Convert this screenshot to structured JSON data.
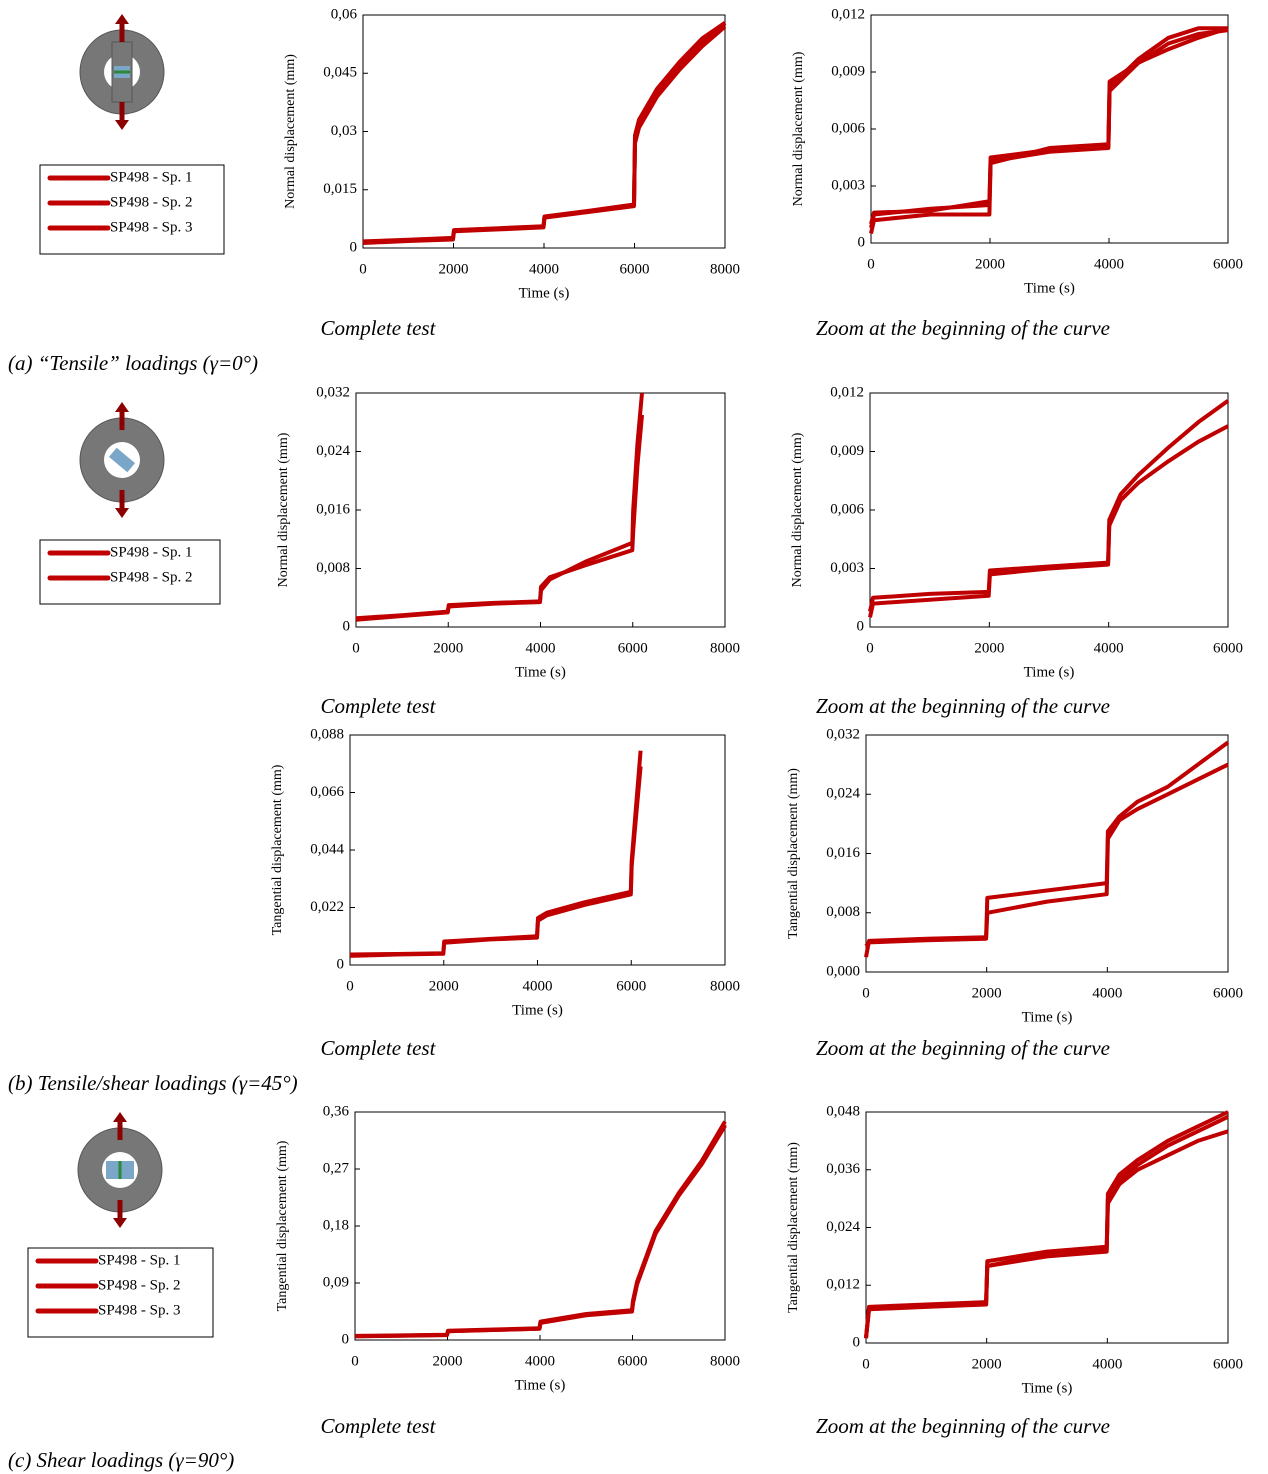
{
  "figure_labels": [
    "(a) “Tensile” loadings (γ=0°)",
    "(b) Tensile/shear loadings (γ=45°)",
    "(c) Shear loadings (γ=90°)"
  ],
  "chart_data": [
    {
      "type": "line",
      "caption": "Complete test",
      "xlabel": "Time (s)",
      "ylabel": "Normal displacement  (mm)",
      "x": [
        0,
        1000,
        1990,
        2010,
        3000,
        3990,
        4010,
        5000,
        5990,
        6010,
        6100,
        6500,
        7000,
        7500,
        8000
      ],
      "xlim": [
        0,
        8000
      ],
      "xticks": [
        0,
        2000,
        4000,
        6000,
        8000
      ],
      "ylim": [
        0,
        0.06
      ],
      "yticks": [
        0,
        {
          "value": 0.015,
          "label": "0,015"
        },
        {
          "value": 0.03,
          "label": "0,03"
        },
        {
          "value": 0.045,
          "label": "0,045"
        },
        {
          "value": 0.06,
          "label": "0,06"
        }
      ],
      "series": [
        {
          "name": "SP498 - Sp. 1",
          "color": "#c00000",
          "values": [
            0.0015,
            0.002,
            0.0025,
            0.0045,
            0.005,
            0.0055,
            0.008,
            0.0095,
            0.011,
            0.028,
            0.032,
            0.04,
            0.047,
            0.053,
            0.058
          ]
        },
        {
          "name": "SP498 - Sp. 2",
          "color": "#c00000",
          "values": [
            0.0013,
            0.0018,
            0.0022,
            0.0043,
            0.0048,
            0.0053,
            0.0078,
            0.0093,
            0.0108,
            0.027,
            0.031,
            0.039,
            0.046,
            0.052,
            0.057
          ]
        },
        {
          "name": "SP498 - Sp. 3",
          "color": "#c00000",
          "values": [
            0.0017,
            0.0021,
            0.0026,
            0.0046,
            0.0051,
            0.0056,
            0.0081,
            0.0096,
            0.0112,
            0.029,
            0.033,
            0.041,
            0.048,
            0.054,
            0.058
          ]
        }
      ]
    },
    {
      "type": "line",
      "caption": "Zoom at the beginning of the curve",
      "xlabel": "Time (s)",
      "ylabel": "Normal displacement  (mm)",
      "x": [
        0,
        50,
        1000,
        1990,
        2010,
        3000,
        3990,
        4010,
        4500,
        5000,
        5500,
        6000
      ],
      "xlim": [
        0,
        6000
      ],
      "xticks": [
        0,
        2000,
        4000,
        6000
      ],
      "ylim": [
        0,
        0.012
      ],
      "yticks": [
        0,
        {
          "value": 0.003,
          "label": "0,003"
        },
        {
          "value": 0.006,
          "label": "0,006"
        },
        {
          "value": 0.009,
          "label": "0,009"
        },
        {
          "value": 0.012,
          "label": "0,012"
        }
      ],
      "series": [
        {
          "color": "#c00000",
          "values": [
            0.0008,
            0.0015,
            0.0018,
            0.002,
            0.0043,
            0.0048,
            0.005,
            0.008,
            0.0095,
            0.0105,
            0.011,
            0.0112
          ]
        },
        {
          "color": "#c00000",
          "values": [
            0.0005,
            0.0012,
            0.0015,
            0.0015,
            0.0042,
            0.005,
            0.0052,
            0.0085,
            0.0095,
            0.0102,
            0.0108,
            0.0113
          ]
        },
        {
          "color": "#c00000",
          "values": [
            0.001,
            0.0016,
            0.0017,
            0.0022,
            0.0045,
            0.0049,
            0.0051,
            0.0082,
            0.0097,
            0.0108,
            0.0113,
            0.0113
          ]
        }
      ]
    },
    {
      "type": "line",
      "caption": "Complete test",
      "xlabel": "Time (s)",
      "ylabel": "Normal displacement  (mm)",
      "x": [
        0,
        1000,
        1990,
        2010,
        3000,
        3990,
        4010,
        4200,
        5000,
        5990,
        6010,
        6100,
        6200,
        7000,
        8000
      ],
      "xlim": [
        0,
        8000
      ],
      "xticks": [
        0,
        2000,
        4000,
        6000,
        8000
      ],
      "ylim": [
        0,
        0.032
      ],
      "yticks": [
        0,
        {
          "value": 0.008,
          "label": "0,008"
        },
        {
          "value": 0.016,
          "label": "0,016"
        },
        {
          "value": 0.024,
          "label": "0,024"
        },
        {
          "value": 0.032,
          "label": "0,032"
        }
      ],
      "series": [
        {
          "name": "SP498 - Sp. 1",
          "color": "#c00000",
          "values": [
            0.001,
            0.0015,
            0.002,
            0.003,
            0.0033,
            0.0035,
            0.005,
            0.0065,
            0.009,
            0.0115,
            0.016,
            0.025,
            0.032,
            null,
            null
          ]
        },
        {
          "name": "SP498 - Sp. 2",
          "color": "#c00000",
          "values": [
            0.0012,
            0.0016,
            0.0021,
            0.0028,
            0.0032,
            0.0034,
            0.0055,
            0.0068,
            0.0085,
            0.0105,
            0.013,
            0.022,
            0.029,
            null,
            null
          ]
        }
      ]
    },
    {
      "type": "line",
      "caption": "Zoom at the beginning of the curve",
      "xlabel": "Time (s)",
      "ylabel": "Normal displacement  (mm)",
      "x": [
        0,
        50,
        1000,
        1990,
        2010,
        3000,
        3990,
        4010,
        4200,
        4500,
        5000,
        5500,
        6000
      ],
      "xlim": [
        0,
        6000
      ],
      "xticks": [
        0,
        2000,
        4000,
        6000
      ],
      "ylim": [
        0,
        0.012
      ],
      "yticks": [
        0,
        {
          "value": 0.003,
          "label": "0,003"
        },
        {
          "value": 0.006,
          "label": "0,006"
        },
        {
          "value": 0.009,
          "label": "0,009"
        },
        {
          "value": 0.012,
          "label": "0,012"
        }
      ],
      "series": [
        {
          "color": "#c00000",
          "values": [
            0.0005,
            0.0012,
            0.0014,
            0.0016,
            0.0027,
            0.003,
            0.0032,
            0.0055,
            0.0068,
            0.0078,
            0.0092,
            0.0105,
            0.0116
          ]
        },
        {
          "color": "#c00000",
          "values": [
            0.0008,
            0.0015,
            0.0017,
            0.0018,
            0.0029,
            0.0031,
            0.0033,
            0.0052,
            0.0065,
            0.0074,
            0.0085,
            0.0095,
            0.0103
          ]
        }
      ]
    },
    {
      "type": "line",
      "caption": "Complete test",
      "xlabel": "Time (s)",
      "ylabel": "Tangential displacement (mm)",
      "x": [
        0,
        1000,
        1990,
        2010,
        3000,
        3990,
        4010,
        4200,
        5000,
        5990,
        6010,
        6100,
        6200,
        7000,
        8000
      ],
      "xlim": [
        0,
        8000
      ],
      "xticks": [
        0,
        2000,
        4000,
        6000,
        8000
      ],
      "ylim": [
        0,
        0.088
      ],
      "yticks": [
        0,
        {
          "value": 0.022,
          "label": "0,022"
        },
        {
          "value": 0.044,
          "label": "0,044"
        },
        {
          "value": 0.066,
          "label": "0,066"
        },
        {
          "value": 0.088,
          "label": "0,088"
        }
      ],
      "series": [
        {
          "color": "#c00000",
          "values": [
            0.004,
            0.0042,
            0.0045,
            0.009,
            0.01,
            0.011,
            0.018,
            0.02,
            0.024,
            0.028,
            0.04,
            0.06,
            0.082,
            null,
            null
          ]
        },
        {
          "color": "#c00000",
          "values": [
            0.0035,
            0.004,
            0.0043,
            0.0085,
            0.0098,
            0.0105,
            0.017,
            0.019,
            0.023,
            0.027,
            0.038,
            0.056,
            0.076,
            null,
            null
          ]
        }
      ]
    },
    {
      "type": "line",
      "caption": "Zoom at the beginning of the curve",
      "xlabel": "Time (s)",
      "ylabel": "Tangential displacement (mm)",
      "x": [
        0,
        50,
        1000,
        1990,
        2010,
        3000,
        3990,
        4010,
        4200,
        4500,
        5000,
        5500,
        6000
      ],
      "xlim": [
        0,
        6000
      ],
      "xticks": [
        0,
        2000,
        4000,
        6000
      ],
      "ylim": [
        0,
        0.032
      ],
      "yticks": [
        {
          "value": 0,
          "label": "0,000"
        },
        {
          "value": 0.008,
          "label": "0,008"
        },
        {
          "value": 0.016,
          "label": "0,016"
        },
        {
          "value": 0.024,
          "label": "0,024"
        },
        {
          "value": 0.032,
          "label": "0,032"
        }
      ],
      "series": [
        {
          "color": "#c00000",
          "values": [
            0.002,
            0.0042,
            0.0045,
            0.0047,
            0.01,
            0.011,
            0.012,
            0.019,
            0.021,
            0.023,
            0.025,
            0.028,
            0.031
          ]
        },
        {
          "color": "#c00000",
          "values": [
            0.0035,
            0.004,
            0.0043,
            0.0045,
            0.008,
            0.0095,
            0.0105,
            0.018,
            0.0205,
            0.022,
            0.024,
            0.026,
            0.028
          ]
        }
      ]
    },
    {
      "type": "line",
      "caption": "Complete test",
      "xlabel": "Time (s)",
      "ylabel": "Tangential displacement (mm)",
      "x": [
        0,
        1000,
        1990,
        2010,
        3000,
        3990,
        4010,
        5000,
        5990,
        6010,
        6100,
        6500,
        7000,
        7500,
        8000
      ],
      "xlim": [
        0,
        8000
      ],
      "xticks": [
        0,
        2000,
        4000,
        6000,
        8000
      ],
      "ylim": [
        0,
        0.36
      ],
      "yticks": [
        0,
        {
          "value": 0.09,
          "label": "0,09"
        },
        {
          "value": 0.18,
          "label": "0,18"
        },
        {
          "value": 0.27,
          "label": "0,27"
        },
        {
          "value": 0.36,
          "label": "0,36"
        }
      ],
      "series": [
        {
          "name": "SP498 - Sp. 1",
          "color": "#c00000",
          "values": [
            0.006,
            0.007,
            0.008,
            0.014,
            0.016,
            0.018,
            0.028,
            0.04,
            0.046,
            0.06,
            0.09,
            0.17,
            0.23,
            0.28,
            0.34
          ]
        },
        {
          "name": "SP498 - Sp. 2",
          "color": "#c00000",
          "values": [
            0.0065,
            0.0072,
            0.0082,
            0.0145,
            0.0165,
            0.0185,
            0.029,
            0.041,
            0.047,
            0.062,
            0.092,
            0.172,
            0.232,
            0.283,
            0.345
          ]
        },
        {
          "name": "SP498 - Sp. 3",
          "color": "#c00000",
          "values": [
            0.0058,
            0.0068,
            0.0078,
            0.0138,
            0.0158,
            0.0178,
            0.027,
            0.039,
            0.045,
            0.058,
            0.088,
            0.168,
            0.228,
            0.278,
            0.338
          ]
        }
      ]
    },
    {
      "type": "line",
      "caption": "Zoom at the beginning of the curve",
      "xlabel": "Time (s)",
      "ylabel": "Tangential displacement (mm)",
      "x": [
        0,
        50,
        1000,
        1990,
        2010,
        3000,
        3990,
        4010,
        4200,
        4500,
        5000,
        5500,
        6000
      ],
      "xlim": [
        0,
        6000
      ],
      "xticks": [
        0,
        2000,
        4000,
        6000
      ],
      "ylim": [
        0,
        0.048
      ],
      "yticks": [
        0,
        {
          "value": 0.012,
          "label": "0,012"
        },
        {
          "value": 0.024,
          "label": "0,024"
        },
        {
          "value": 0.036,
          "label": "0,036"
        },
        {
          "value": 0.048,
          "label": "0,048"
        }
      ],
      "series": [
        {
          "color": "#c00000",
          "values": [
            0.001,
            0.007,
            0.0075,
            0.008,
            0.016,
            0.018,
            0.019,
            0.03,
            0.034,
            0.037,
            0.041,
            0.044,
            0.047
          ]
        },
        {
          "color": "#c00000",
          "values": [
            0.001,
            0.0075,
            0.008,
            0.0085,
            0.017,
            0.019,
            0.02,
            0.031,
            0.035,
            0.038,
            0.042,
            0.045,
            0.048
          ]
        },
        {
          "color": "#c00000",
          "values": [
            0.001,
            0.007,
            0.0078,
            0.008,
            0.016,
            0.0185,
            0.0195,
            0.029,
            0.033,
            0.036,
            0.039,
            0.042,
            0.044
          ]
        }
      ]
    }
  ]
}
